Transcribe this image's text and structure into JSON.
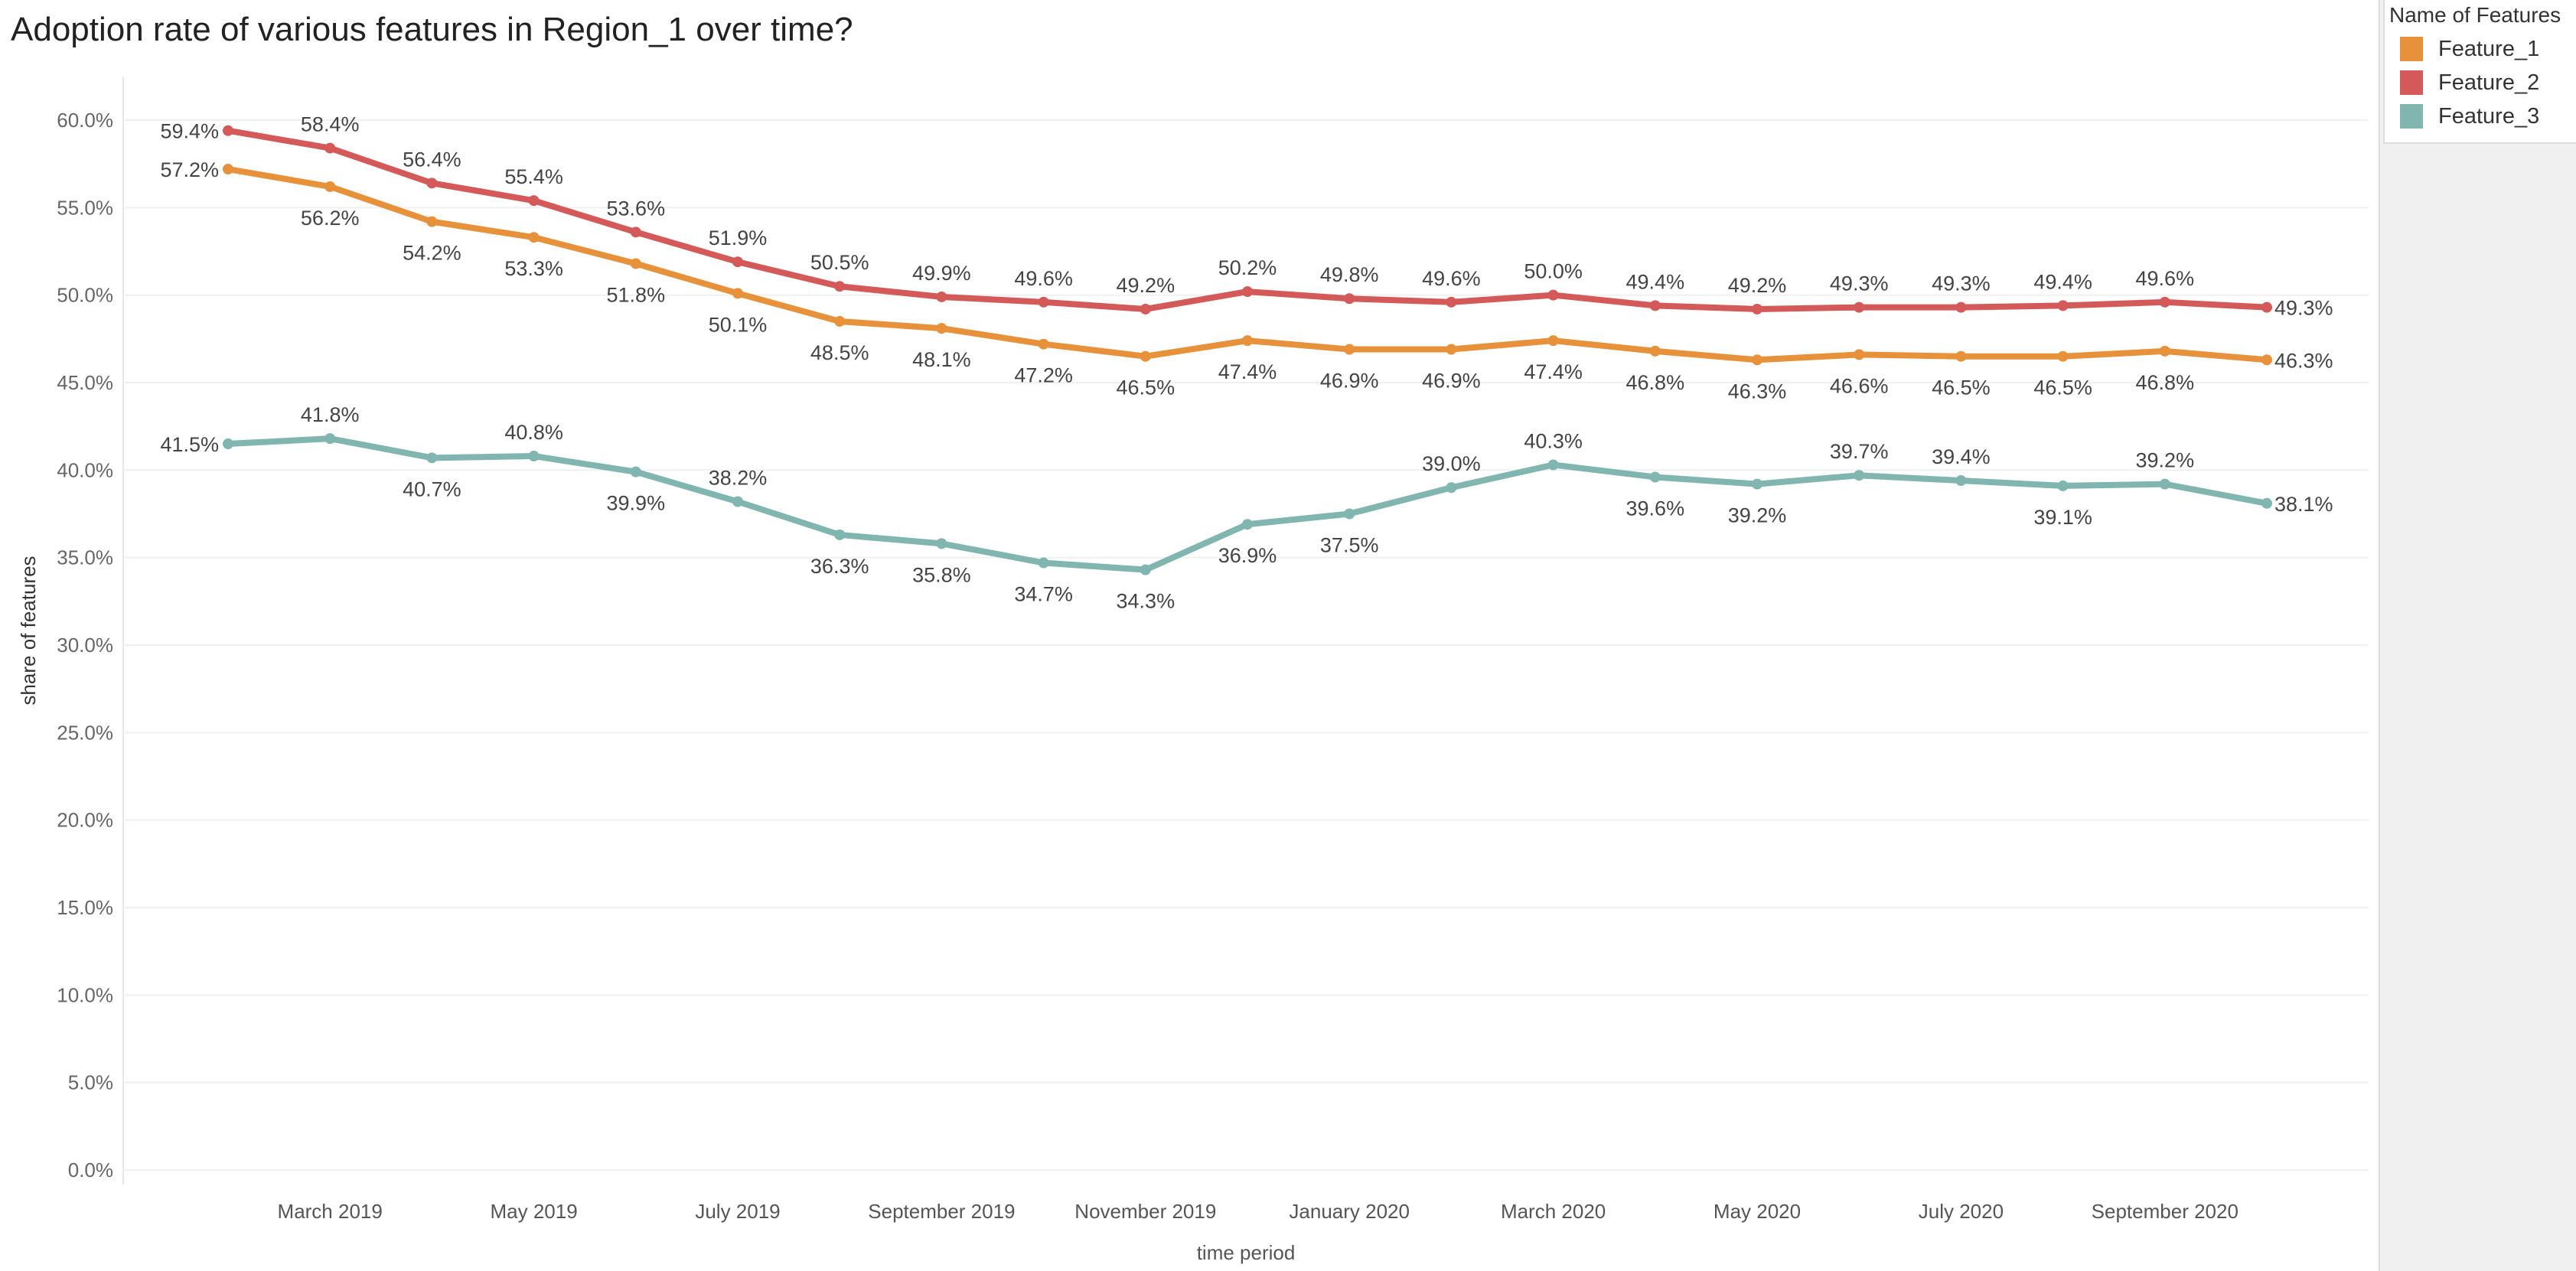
{
  "chart_data": {
    "type": "line",
    "title": "Adoption rate of various features in Region_1 over time?",
    "xlabel": "time period",
    "ylabel": "share of features",
    "x": [
      "2019-02",
      "2019-03",
      "2019-04",
      "2019-05",
      "2019-06",
      "2019-07",
      "2019-08",
      "2019-09",
      "2019-10",
      "2019-11",
      "2019-12",
      "2020-01",
      "2020-02",
      "2020-03",
      "2020-04",
      "2020-05",
      "2020-06",
      "2020-07",
      "2020-08",
      "2020-09",
      "2020-10"
    ],
    "x_tick_labels": [
      {
        "x": "2019-03",
        "label": "March 2019"
      },
      {
        "x": "2019-05",
        "label": "May 2019"
      },
      {
        "x": "2019-07",
        "label": "July 2019"
      },
      {
        "x": "2019-09",
        "label": "September 2019"
      },
      {
        "x": "2019-11",
        "label": "November 2019"
      },
      {
        "x": "2020-01",
        "label": "January 2020"
      },
      {
        "x": "2020-03",
        "label": "March 2020"
      },
      {
        "x": "2020-05",
        "label": "May 2020"
      },
      {
        "x": "2020-07",
        "label": "July 2020"
      },
      {
        "x": "2020-09",
        "label": "September 2020"
      }
    ],
    "y_ticks": [
      0,
      5,
      10,
      15,
      20,
      25,
      30,
      35,
      40,
      45,
      50,
      55,
      60
    ],
    "y_tick_labels": [
      "0.0%",
      "5.0%",
      "10.0%",
      "15.0%",
      "20.0%",
      "25.0%",
      "30.0%",
      "35.0%",
      "40.0%",
      "45.0%",
      "50.0%",
      "55.0%",
      "60.0%"
    ],
    "ylim": [
      0,
      62
    ],
    "grid": true,
    "legend_title": "Name of Features",
    "legend_placement": "top-right",
    "series": [
      {
        "name": "Feature_1",
        "color": "#e8913b",
        "values": [
          57.2,
          56.2,
          54.2,
          53.3,
          51.8,
          50.1,
          48.5,
          48.1,
          47.2,
          46.5,
          47.4,
          46.9,
          46.9,
          47.4,
          46.8,
          46.3,
          46.6,
          46.5,
          46.5,
          46.8,
          46.3
        ]
      },
      {
        "name": "Feature_2",
        "color": "#d45a5a",
        "values": [
          59.4,
          58.4,
          56.4,
          55.4,
          53.6,
          51.9,
          50.5,
          49.9,
          49.6,
          49.2,
          50.2,
          49.8,
          49.6,
          50.0,
          49.4,
          49.2,
          49.3,
          49.3,
          49.4,
          49.6,
          49.3
        ]
      },
      {
        "name": "Feature_3",
        "color": "#80b5b0",
        "values": [
          41.5,
          41.8,
          40.7,
          40.8,
          39.9,
          38.2,
          36.3,
          35.8,
          34.7,
          34.3,
          36.9,
          37.5,
          39.0,
          40.3,
          39.6,
          39.2,
          39.7,
          39.4,
          39.1,
          39.2,
          38.1
        ]
      }
    ]
  }
}
